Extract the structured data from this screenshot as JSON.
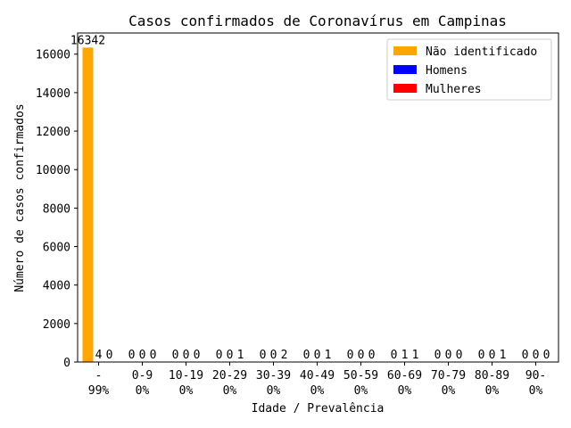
{
  "chart_data": {
    "type": "bar",
    "title": "Casos confirmados de Coronavírus em Campinas",
    "xlabel": "Idade / Prevalência",
    "ylabel": "Número de casos confirmados",
    "ylim": [
      0,
      17100
    ],
    "yticks": [
      0,
      2000,
      4000,
      6000,
      8000,
      10000,
      12000,
      14000,
      16000
    ],
    "grid": false,
    "legend_position": "top-right",
    "categories": [
      "-",
      "0-9",
      "10-19",
      "20-29",
      "30-39",
      "40-49",
      "50-59",
      "60-69",
      "70-79",
      "80-89",
      "90-"
    ],
    "prevalence": [
      "99%",
      "0%",
      "0%",
      "0%",
      "0%",
      "0%",
      "0%",
      "0%",
      "0%",
      "0%",
      "0%"
    ],
    "series": [
      {
        "name": "Não identificado",
        "color": "#ffa500",
        "values": [
          16342,
          0,
          0,
          0,
          0,
          0,
          0,
          0,
          0,
          0,
          0
        ]
      },
      {
        "name": "Homens",
        "color": "#0000ff",
        "values": [
          4,
          0,
          0,
          0,
          0,
          0,
          0,
          1,
          0,
          0,
          0
        ]
      },
      {
        "name": "Mulheres",
        "color": "#ff0000",
        "values": [
          0,
          0,
          0,
          1,
          2,
          1,
          0,
          1,
          0,
          1,
          0
        ]
      }
    ]
  }
}
